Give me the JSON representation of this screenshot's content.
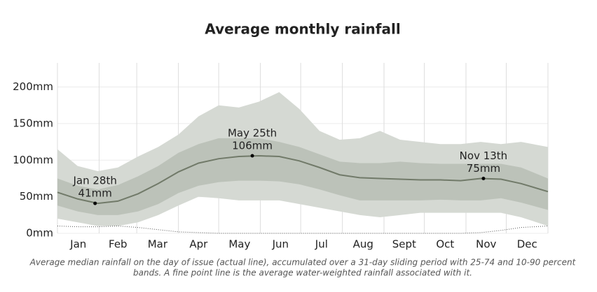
{
  "chart_data": {
    "type": "band-line",
    "title": "Average monthly rainfall",
    "caption": [
      "Average median rainfall on the day of issue (actual line), accumulated over a 31-day sliding period with 25-74 and 10-90 percent",
      "bands. A fine point line is the average water-weighted rainfall associated with it."
    ],
    "x": [
      0,
      15,
      30,
      45,
      60,
      75,
      90,
      105,
      120,
      135,
      150,
      165,
      180,
      195,
      210,
      225,
      240,
      255,
      270,
      285,
      300,
      315,
      330,
      345,
      365
    ],
    "xlim": [
      0,
      365
    ],
    "xticks": [
      {
        "value": 15.5,
        "label": "Jan"
      },
      {
        "value": 45,
        "label": "Feb"
      },
      {
        "value": 74.5,
        "label": "Mar"
      },
      {
        "value": 105,
        "label": "Apr"
      },
      {
        "value": 135.5,
        "label": "May"
      },
      {
        "value": 166,
        "label": "Jun"
      },
      {
        "value": 196.5,
        "label": "Jul"
      },
      {
        "value": 227.5,
        "label": "Aug"
      },
      {
        "value": 258,
        "label": "Sept"
      },
      {
        "value": 288.5,
        "label": "Oct"
      },
      {
        "value": 319,
        "label": "Nov"
      },
      {
        "value": 349.5,
        "label": "Dec"
      }
    ],
    "xgrid": [
      0,
      31,
      59,
      90,
      120,
      151,
      181,
      212,
      243,
      273,
      304,
      334,
      365
    ],
    "ylim": [
      0,
      233
    ],
    "yticks": [
      {
        "value": 0,
        "label": "0mm"
      },
      {
        "value": 50,
        "label": "50mm"
      },
      {
        "value": 100,
        "label": "100mm"
      },
      {
        "value": 150,
        "label": "150mm"
      },
      {
        "value": 200,
        "label": "200mm"
      }
    ],
    "grid": true,
    "bands": [
      {
        "color": "#d5d9d3",
        "lower": [
          20,
          15,
          10,
          10,
          15,
          25,
          38,
          50,
          48,
          45,
          45,
          45,
          40,
          35,
          30,
          25,
          22,
          25,
          28,
          28,
          28,
          28,
          28,
          22,
          10
        ],
        "upper": [
          115,
          92,
          85,
          90,
          105,
          118,
          135,
          160,
          175,
          172,
          180,
          193,
          170,
          140,
          128,
          130,
          140,
          128,
          125,
          122,
          122,
          125,
          122,
          125,
          118
        ]
      },
      {
        "color": "#bcc2b9",
        "lower": [
          38,
          30,
          25,
          25,
          30,
          40,
          55,
          65,
          70,
          72,
          72,
          71,
          67,
          60,
          52,
          45,
          45,
          45,
          45,
          46,
          45,
          45,
          48,
          42,
          32
        ],
        "upper": [
          75,
          65,
          60,
          66,
          78,
          92,
          110,
          122,
          130,
          130,
          130,
          125,
          118,
          108,
          98,
          96,
          96,
          98,
          96,
          95,
          95,
          95,
          95,
          90,
          75
        ]
      }
    ],
    "series": [
      {
        "color": "#717a69",
        "values": [
          56,
          47,
          41,
          44,
          54,
          68,
          84,
          96,
          102,
          105,
          106,
          105,
          99,
          90,
          80,
          76,
          75,
          74,
          73,
          73,
          72,
          75,
          74,
          68,
          57
        ]
      }
    ],
    "fine_line": {
      "color": "#555555",
      "values": [
        10,
        9,
        9,
        10,
        8,
        5,
        2,
        1,
        0,
        0,
        0,
        0,
        0,
        0,
        0,
        0,
        0,
        0,
        0,
        0,
        0,
        1,
        4,
        8,
        10
      ]
    },
    "annotations": [
      {
        "x": 28,
        "y": 41,
        "label": "Jan 28th",
        "value_label": "41mm"
      },
      {
        "x": 145,
        "y": 106,
        "label": "May 25th",
        "value_label": "106mm"
      },
      {
        "x": 317,
        "y": 75,
        "label": "Nov 13th",
        "value_label": "75mm"
      }
    ]
  }
}
